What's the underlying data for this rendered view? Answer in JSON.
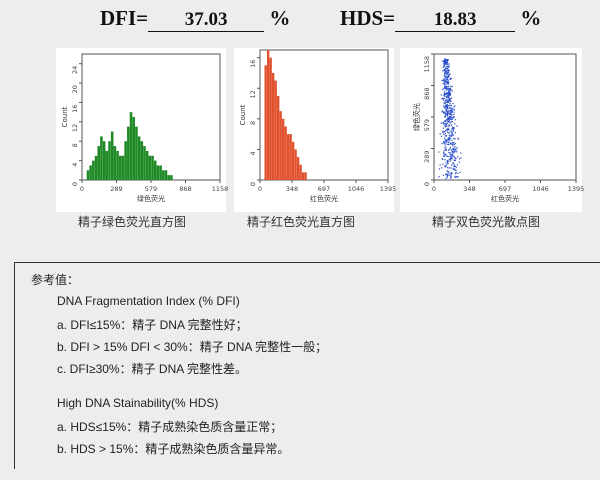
{
  "header": {
    "dfi_label": "DFI=",
    "dfi_value": "37.03",
    "dfi_unit": "%",
    "hds_label": "HDS=",
    "hds_value": "18.83",
    "hds_unit": "%"
  },
  "chart_data": [
    {
      "type": "bar",
      "caption": "精子绿色荧光直方图",
      "xlabel": "绿色荧光",
      "ylabel": "Count",
      "x_ticks": [
        "0",
        "289",
        "579",
        "868",
        "1158"
      ],
      "y_ticks": [
        "0",
        "4",
        "8",
        "12",
        "16",
        "20",
        "24"
      ],
      "xlim": [
        0,
        1158
      ],
      "ylim": [
        0,
        26
      ],
      "color": "#1f8a25",
      "values": [
        0,
        2,
        3,
        4,
        5,
        7,
        9,
        8,
        6,
        8,
        10,
        7,
        6,
        5,
        5,
        8,
        11,
        14,
        13,
        11,
        9,
        8,
        7,
        6,
        5,
        5,
        4,
        3,
        3,
        2,
        2,
        1,
        1,
        0,
        0,
        0,
        0,
        0,
        0,
        0
      ]
    },
    {
      "type": "bar",
      "caption": "精子红色荧光直方图",
      "xlabel": "红色荧光",
      "ylabel": "Count",
      "x_ticks": [
        "0",
        "348",
        "697",
        "1046",
        "1395"
      ],
      "y_ticks": [
        "0",
        "4",
        "8",
        "12",
        "16"
      ],
      "xlim": [
        0,
        1395
      ],
      "ylim": [
        0,
        17
      ],
      "color": "#e1512d",
      "values": [
        0,
        15,
        17,
        16,
        14,
        13,
        11,
        9,
        8,
        7,
        6,
        6,
        5,
        4,
        3,
        2,
        1,
        1,
        0,
        0,
        0,
        0,
        0,
        0,
        0,
        0,
        0,
        0,
        0,
        0,
        0,
        0,
        0,
        0,
        0,
        0,
        0,
        0,
        0,
        0
      ]
    },
    {
      "type": "scatter",
      "caption": "精子双色荧光散点图",
      "xlabel": "红色荧光",
      "ylabel": "绿色荧光",
      "x_ticks": [
        "0",
        "348",
        "697",
        "1046",
        "1395"
      ],
      "y_ticks": [
        "0",
        "289",
        "579",
        "868",
        "1158"
      ],
      "xlim": [
        0,
        1395
      ],
      "ylim": [
        0,
        1158
      ],
      "color": "#2a4fc8"
    }
  ],
  "reference": {
    "title": "参考值：",
    "dfi_heading": "DNA Fragmentation Index (% DFI)",
    "dfi_a": "a. DFI≤15%：精子 DNA 完整性好；",
    "dfi_b": "b. DFI > 15% DFI < 30%：精子 DNA 完整性一般；",
    "dfi_c": "c. DFI≥30%：精子 DNA 完整性差。",
    "hds_heading": "High DNA Stainability(% HDS)",
    "hds_a": "a. HDS≤15%：精子成熟染色质含量正常；",
    "hds_b": "b. HDS > 15%：精子成熟染色质含量异常。"
  }
}
